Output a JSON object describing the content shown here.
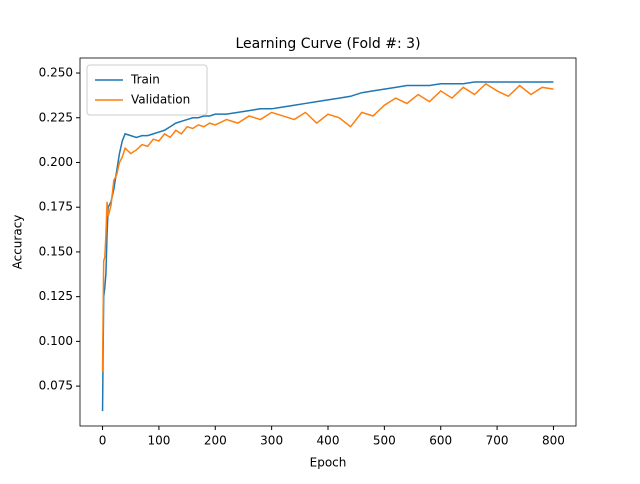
{
  "chart_data": {
    "type": "line",
    "title": "Learning Curve (Fold #: 3)",
    "x_label": "Epoch",
    "y_label": "Accuracy",
    "x": [
      0,
      2,
      4,
      6,
      8,
      10,
      15,
      20,
      25,
      30,
      35,
      40,
      50,
      60,
      70,
      80,
      90,
      100,
      110,
      120,
      130,
      140,
      150,
      160,
      170,
      180,
      190,
      200,
      220,
      240,
      260,
      280,
      300,
      320,
      340,
      360,
      380,
      400,
      420,
      440,
      460,
      480,
      500,
      520,
      540,
      560,
      580,
      600,
      620,
      640,
      660,
      680,
      700,
      720,
      740,
      760,
      780,
      800
    ],
    "series": [
      {
        "name": "Train",
        "color": "#1f77b4",
        "values": [
          0.061,
          0.125,
          0.13,
          0.138,
          0.16,
          0.175,
          0.178,
          0.185,
          0.195,
          0.205,
          0.212,
          0.216,
          0.215,
          0.214,
          0.215,
          0.215,
          0.216,
          0.217,
          0.218,
          0.22,
          0.222,
          0.223,
          0.224,
          0.225,
          0.225,
          0.226,
          0.226,
          0.227,
          0.227,
          0.228,
          0.229,
          0.23,
          0.23,
          0.231,
          0.232,
          0.233,
          0.234,
          0.235,
          0.236,
          0.237,
          0.239,
          0.24,
          0.241,
          0.242,
          0.243,
          0.243,
          0.243,
          0.244,
          0.244,
          0.244,
          0.245,
          0.245,
          0.245,
          0.245,
          0.245,
          0.245,
          0.245,
          0.245
        ]
      },
      {
        "name": "Validation",
        "color": "#ff7f0e",
        "values": [
          0.083,
          0.145,
          0.147,
          0.16,
          0.178,
          0.17,
          0.176,
          0.19,
          0.193,
          0.2,
          0.203,
          0.208,
          0.205,
          0.207,
          0.21,
          0.209,
          0.213,
          0.212,
          0.216,
          0.214,
          0.218,
          0.216,
          0.22,
          0.219,
          0.221,
          0.22,
          0.222,
          0.221,
          0.224,
          0.222,
          0.226,
          0.224,
          0.228,
          0.226,
          0.224,
          0.228,
          0.222,
          0.227,
          0.225,
          0.22,
          0.228,
          0.226,
          0.232,
          0.236,
          0.233,
          0.238,
          0.234,
          0.24,
          0.236,
          0.242,
          0.238,
          0.244,
          0.24,
          0.237,
          0.243,
          0.238,
          0.242,
          0.241
        ]
      }
    ],
    "xlim": [
      -40,
      840
    ],
    "xticks": [
      0,
      100,
      200,
      300,
      400,
      500,
      600,
      700,
      800
    ],
    "ylim": [
      0.0527,
      0.2584
    ],
    "yticks": [
      0.075,
      {
        "value": 0.1,
        "label": "0.100"
      },
      0.125,
      {
        "value": 0.15,
        "label": "0.150"
      },
      0.175,
      {
        "value": 0.2,
        "label": "0.200"
      },
      0.225,
      {
        "value": 0.25,
        "label": "0.250"
      }
    ],
    "legend": "upper left",
    "grid": false
  }
}
